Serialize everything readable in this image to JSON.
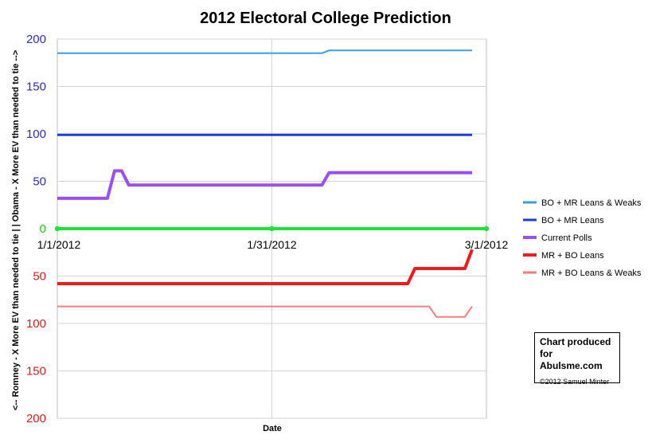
{
  "chart_data": {
    "type": "line",
    "title": "2012 Electoral College Prediction",
    "xlabel": "Date",
    "ylabel": "<-- Romney - X More EV than needed to tie | | Obama - X More EV than needed to tie -->",
    "x_domain": [
      "2012-01-01",
      "2012-03-01"
    ],
    "x_ticks": [
      {
        "date": "2012-01-01",
        "label": "1/1/2012"
      },
      {
        "date": "2012-01-31",
        "label": "1/31/2012"
      },
      {
        "date": "2012-03-01",
        "label": "3/1/2012"
      }
    ],
    "ylim": [
      -200,
      200
    ],
    "y_ticks": [
      {
        "value": 200,
        "label": "200"
      },
      {
        "value": 150,
        "label": "150"
      },
      {
        "value": 100,
        "label": "100"
      },
      {
        "value": 50,
        "label": "50"
      },
      {
        "value": 0,
        "label": "0"
      },
      {
        "value": -50,
        "label": "50"
      },
      {
        "value": -100,
        "label": "100"
      },
      {
        "value": -150,
        "label": "150"
      },
      {
        "value": -200,
        "label": "200"
      }
    ],
    "grid": true,
    "legend_position": "right",
    "series": [
      {
        "name": "BO + MR Leans & Weaks",
        "color": "#3a9de6",
        "width": 2,
        "points": [
          [
            "2012-01-01",
            185
          ],
          [
            "2012-02-07",
            185
          ],
          [
            "2012-02-08",
            188
          ],
          [
            "2012-02-28",
            188
          ]
        ]
      },
      {
        "name": "BO + MR Leans",
        "color": "#1d3fd9",
        "width": 3,
        "points": [
          [
            "2012-01-01",
            99
          ],
          [
            "2012-02-28",
            99
          ]
        ]
      },
      {
        "name": "Current Polls",
        "color": "#9a4ff0",
        "width": 4,
        "points": [
          [
            "2012-01-01",
            32
          ],
          [
            "2012-01-08",
            32
          ],
          [
            "2012-01-09",
            61
          ],
          [
            "2012-01-10",
            61
          ],
          [
            "2012-01-11",
            46
          ],
          [
            "2012-02-07",
            46
          ],
          [
            "2012-02-08",
            59
          ],
          [
            "2012-02-28",
            59
          ]
        ]
      },
      {
        "name": "MR + BO Leans",
        "color": "#ee1c1c",
        "width": 4,
        "points": [
          [
            "2012-01-01",
            -58
          ],
          [
            "2012-02-19",
            -58
          ],
          [
            "2012-02-20",
            -42
          ],
          [
            "2012-02-27",
            -42
          ],
          [
            "2012-02-28",
            -22
          ]
        ]
      },
      {
        "name": "MR + BO Leans & Weaks",
        "color": "#f07e7e",
        "width": 2,
        "points": [
          [
            "2012-01-01",
            -82
          ],
          [
            "2012-02-22",
            -82
          ],
          [
            "2012-02-23",
            -93
          ],
          [
            "2012-02-27",
            -93
          ],
          [
            "2012-02-28",
            -82
          ]
        ]
      }
    ],
    "zero_line": {
      "color": "#20e03a"
    },
    "grid_colors": {
      "major": "#d3d3d3",
      "axis_box": "#bdbdbd"
    },
    "tick_colors": {
      "positive": "#2b2bbd",
      "zero": "#1bc31b",
      "negative": "#cc2020"
    }
  },
  "credit": {
    "line1": "Chart produced",
    "line2": "for Abulsme.com",
    "line3": "©2012 Samuel Minter"
  }
}
